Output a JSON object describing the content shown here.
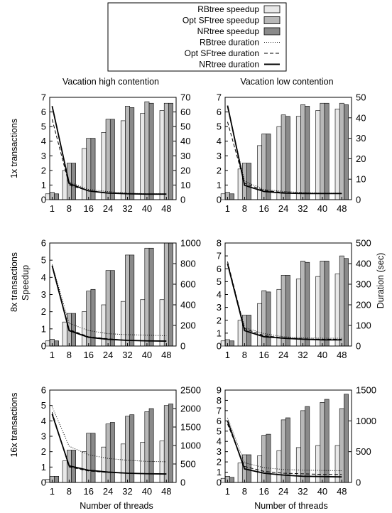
{
  "legend": [
    {
      "label": "RBtree speedup",
      "kind": "bar",
      "color": "#e8e8e8"
    },
    {
      "label": "Opt SFtree speedup",
      "kind": "bar",
      "color": "#b8b8b8"
    },
    {
      "label": "NRtree speedup",
      "kind": "bar",
      "color": "#8a8a8a"
    },
    {
      "label": "RBtree duration",
      "kind": "line",
      "dash": "dotted"
    },
    {
      "label": "Opt SFtree duration",
      "kind": "line",
      "dash": "dashed"
    },
    {
      "label": "NRtree duration",
      "kind": "line",
      "dash": "solid"
    }
  ],
  "column_titles": [
    "Vacation high contention",
    "Vacation low contention"
  ],
  "row_labels": [
    "1x transactions",
    "8x transactions",
    "16x transactions"
  ],
  "y_left_label": "Speedup",
  "y_right_label": "Duration (sec)",
  "x_label": "Number of threads",
  "chart_data": [
    {
      "type": "bar",
      "categories": [
        "1",
        "8",
        "16",
        "24",
        "32",
        "40",
        "48"
      ],
      "ylim": [
        0,
        7
      ],
      "y2lim": [
        0,
        70
      ],
      "yticks": [
        0,
        1,
        2,
        3,
        4,
        5,
        6,
        7
      ],
      "y2ticks": [
        0,
        10,
        20,
        30,
        40,
        50,
        60,
        70
      ],
      "series": [
        {
          "name": "RBtree speedup",
          "values": [
            0.4,
            2.0,
            3.5,
            4.6,
            5.4,
            5.9,
            6.1
          ]
        },
        {
          "name": "Opt SFtree speedup",
          "values": [
            0.5,
            2.5,
            4.2,
            5.5,
            6.4,
            6.7,
            6.6
          ]
        },
        {
          "name": "NRtree speedup",
          "values": [
            0.4,
            2.5,
            4.2,
            5.5,
            6.3,
            6.6,
            6.6
          ]
        }
      ],
      "lines": [
        {
          "name": "RBtree duration",
          "x": [
            1,
            8,
            16,
            24,
            32,
            40,
            48
          ],
          "values": [
            64,
            12,
            7,
            5.5,
            4.5,
            4,
            4
          ]
        },
        {
          "name": "Opt SFtree duration",
          "x": [
            1,
            8,
            16,
            24,
            32,
            40,
            48
          ],
          "values": [
            55,
            10,
            6,
            4.5,
            4,
            3.8,
            3.8
          ]
        },
        {
          "name": "NRtree duration",
          "x": [
            1,
            8,
            16,
            24,
            32,
            40,
            48
          ],
          "values": [
            64,
            11,
            6,
            4.5,
            4,
            3.8,
            3.8
          ]
        }
      ]
    },
    {
      "type": "bar",
      "categories": [
        "1",
        "8",
        "16",
        "24",
        "32",
        "40",
        "48"
      ],
      "ylim": [
        0,
        7
      ],
      "y2lim": [
        0,
        50
      ],
      "yticks": [
        0,
        1,
        2,
        3,
        4,
        5,
        6,
        7
      ],
      "y2ticks": [
        0,
        10,
        20,
        30,
        40,
        50
      ],
      "series": [
        {
          "name": "RBtree speedup",
          "values": [
            0.4,
            2.1,
            3.7,
            5.0,
            5.7,
            6.1,
            6.2
          ]
        },
        {
          "name": "Opt SFtree speedup",
          "values": [
            0.5,
            2.5,
            4.5,
            5.8,
            6.5,
            6.6,
            6.6
          ]
        },
        {
          "name": "NRtree speedup",
          "values": [
            0.4,
            2.5,
            4.5,
            5.7,
            6.4,
            6.6,
            6.5
          ]
        }
      ],
      "lines": [
        {
          "name": "RBtree duration",
          "x": [
            1,
            8,
            16,
            24,
            32,
            40,
            48
          ],
          "values": [
            45,
            9,
            5,
            4,
            3.5,
            3.2,
            3.2
          ]
        },
        {
          "name": "Opt SFtree duration",
          "x": [
            1,
            8,
            16,
            24,
            32,
            40,
            48
          ],
          "values": [
            38,
            8,
            4.5,
            3.5,
            3.2,
            3,
            3
          ]
        },
        {
          "name": "NRtree duration",
          "x": [
            1,
            8,
            16,
            24,
            32,
            40,
            48
          ],
          "values": [
            46,
            7,
            4,
            3.2,
            3,
            3,
            3
          ]
        }
      ]
    },
    {
      "type": "bar",
      "categories": [
        "1",
        "8",
        "16",
        "24",
        "32",
        "40",
        "48"
      ],
      "ylim": [
        0,
        6
      ],
      "y2lim": [
        0,
        1000
      ],
      "yticks": [
        0,
        1,
        2,
        3,
        4,
        5,
        6
      ],
      "y2ticks": [
        0,
        200,
        400,
        600,
        800,
        1000
      ],
      "series": [
        {
          "name": "RBtree speedup",
          "values": [
            0.3,
            1.4,
            2.0,
            2.4,
            2.6,
            2.7,
            2.7
          ]
        },
        {
          "name": "Opt SFtree speedup",
          "values": [
            0.4,
            1.9,
            3.2,
            4.4,
            5.3,
            5.7,
            6.0
          ]
        },
        {
          "name": "NRtree speedup",
          "values": [
            0.3,
            1.9,
            3.3,
            4.4,
            5.3,
            5.7,
            6.0
          ]
        }
      ],
      "lines": [
        {
          "name": "RBtree duration",
          "x": [
            1,
            8,
            16,
            24,
            32,
            40,
            48
          ],
          "values": [
            790,
            220,
            150,
            120,
            110,
            105,
            100
          ]
        },
        {
          "name": "Opt SFtree duration",
          "x": [
            1,
            8,
            16,
            24,
            32,
            40,
            48
          ],
          "values": [
            780,
            160,
            90,
            70,
            55,
            50,
            48
          ]
        },
        {
          "name": "NRtree duration",
          "x": [
            1,
            8,
            16,
            24,
            32,
            40,
            48
          ],
          "values": [
            780,
            150,
            85,
            65,
            55,
            50,
            48
          ]
        }
      ]
    },
    {
      "type": "bar",
      "categories": [
        "1",
        "8",
        "16",
        "24",
        "32",
        "40",
        "48"
      ],
      "ylim": [
        0,
        8
      ],
      "y2lim": [
        0,
        500
      ],
      "yticks": [
        0,
        1,
        2,
        3,
        4,
        5,
        6,
        7,
        8
      ],
      "y2ticks": [
        0,
        100,
        200,
        300,
        400,
        500
      ],
      "series": [
        {
          "name": "RBtree speedup",
          "values": [
            0.4,
            2.0,
            3.3,
            4.4,
            5.2,
            5.4,
            5.6
          ]
        },
        {
          "name": "Opt SFtree speedup",
          "values": [
            0.5,
            2.4,
            4.3,
            5.5,
            6.6,
            6.6,
            7.0
          ]
        },
        {
          "name": "NRtree speedup",
          "values": [
            0.4,
            2.4,
            4.2,
            5.5,
            6.5,
            6.6,
            6.8
          ]
        }
      ],
      "lines": [
        {
          "name": "RBtree duration",
          "x": [
            1,
            8,
            16,
            24,
            32,
            40,
            48
          ],
          "values": [
            400,
            90,
            60,
            45,
            40,
            38,
            38
          ]
        },
        {
          "name": "Opt SFtree duration",
          "x": [
            1,
            8,
            16,
            24,
            32,
            40,
            48
          ],
          "values": [
            410,
            85,
            50,
            40,
            35,
            33,
            33
          ]
        },
        {
          "name": "NRtree duration",
          "x": [
            1,
            8,
            16,
            24,
            32,
            40,
            48
          ],
          "values": [
            400,
            75,
            45,
            38,
            33,
            30,
            30
          ]
        }
      ]
    },
    {
      "type": "bar",
      "categories": [
        "1",
        "8",
        "16",
        "24",
        "32",
        "40",
        "48"
      ],
      "ylim": [
        0,
        6
      ],
      "y2lim": [
        0,
        2500
      ],
      "yticks": [
        0,
        1,
        2,
        3,
        4,
        5,
        6
      ],
      "y2ticks": [
        0,
        500,
        1000,
        1500,
        2000,
        2500
      ],
      "series": [
        {
          "name": "RBtree speedup",
          "values": [
            0.2,
            1.4,
            2.0,
            2.3,
            2.5,
            2.6,
            2.7
          ]
        },
        {
          "name": "Opt SFtree speedup",
          "values": [
            0.4,
            2.1,
            3.2,
            3.8,
            4.3,
            4.6,
            5.0
          ]
        },
        {
          "name": "NRtree speedup",
          "values": [
            0.4,
            2.1,
            3.2,
            3.9,
            4.4,
            4.8,
            5.1
          ]
        }
      ],
      "lines": [
        {
          "name": "RBtree duration",
          "x": [
            1,
            8,
            16,
            24,
            32,
            40,
            48
          ],
          "values": [
            2050,
            980,
            750,
            650,
            600,
            570,
            560
          ]
        },
        {
          "name": "Opt SFtree duration",
          "x": [
            1,
            8,
            16,
            24,
            32,
            40,
            48
          ],
          "values": [
            1900,
            420,
            310,
            270,
            250,
            240,
            230
          ]
        },
        {
          "name": "NRtree duration",
          "x": [
            1,
            8,
            16,
            24,
            32,
            40,
            48
          ],
          "values": [
            1850,
            450,
            330,
            280,
            250,
            235,
            230
          ]
        }
      ]
    },
    {
      "type": "bar",
      "categories": [
        "1",
        "8",
        "16",
        "24",
        "32",
        "40",
        "48"
      ],
      "ylim": [
        0,
        9
      ],
      "y2lim": [
        0,
        1500
      ],
      "yticks": [
        0,
        1,
        2,
        3,
        4,
        5,
        6,
        7,
        8,
        9
      ],
      "y2ticks": [
        0,
        500,
        1000,
        1500
      ],
      "series": [
        {
          "name": "RBtree speedup",
          "values": [
            0.4,
            1.9,
            2.6,
            3.1,
            3.4,
            3.6,
            3.6
          ]
        },
        {
          "name": "Opt SFtree speedup",
          "values": [
            0.6,
            2.7,
            4.6,
            6.1,
            7.0,
            7.8,
            7.2
          ]
        },
        {
          "name": "NRtree speedup",
          "values": [
            0.5,
            2.7,
            4.7,
            6.3,
            7.4,
            8.1,
            8.6
          ]
        }
      ],
      "lines": [
        {
          "name": "RBtree duration",
          "x": [
            1,
            8,
            16,
            24,
            32,
            40,
            48
          ],
          "values": [
            1050,
            320,
            240,
            210,
            200,
            195,
            190
          ]
        },
        {
          "name": "Opt SFtree duration",
          "x": [
            1,
            8,
            16,
            24,
            32,
            40,
            48
          ],
          "values": [
            950,
            260,
            180,
            150,
            140,
            130,
            130
          ]
        },
        {
          "name": "NRtree duration",
          "x": [
            1,
            8,
            16,
            24,
            32,
            40,
            48
          ],
          "values": [
            1000,
            220,
            150,
            120,
            100,
            95,
            90
          ]
        }
      ]
    }
  ]
}
